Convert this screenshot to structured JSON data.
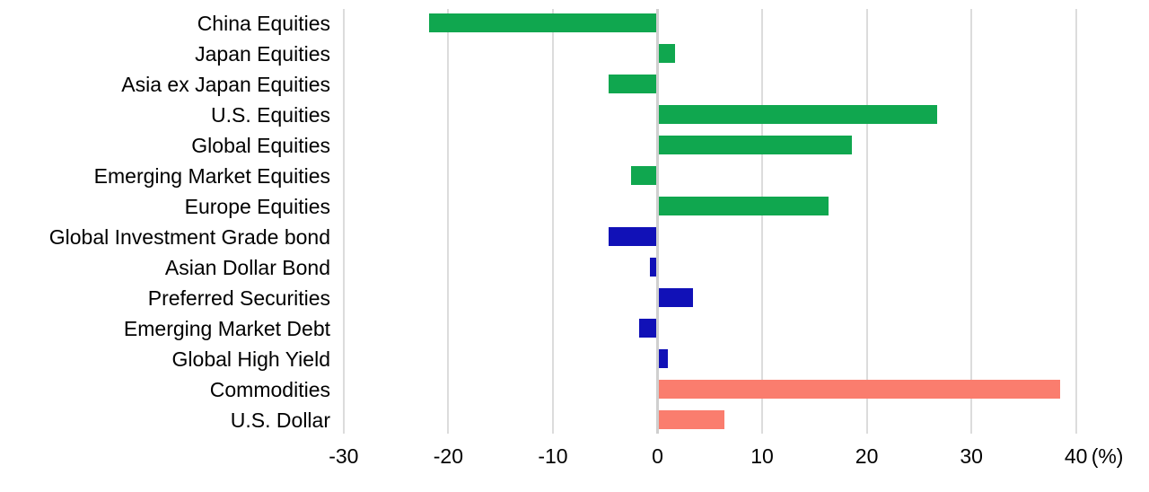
{
  "chart_data": {
    "type": "bar",
    "orientation": "horizontal",
    "categories": [
      "China Equities",
      "Japan Equities",
      "Asia ex Japan Equities",
      "U.S. Equities",
      "Global Equities",
      "Emerging Market Equities",
      "Europe Equities",
      "Global Investment Grade bond",
      "Asian Dollar Bond",
      "Preferred Securities",
      "Emerging Market Debt",
      "Global High Yield",
      "Commodities",
      "U.S. Dollar"
    ],
    "values": [
      -21.8,
      1.7,
      -4.7,
      26.7,
      18.6,
      -2.5,
      16.3,
      -4.7,
      -0.7,
      3.4,
      -1.8,
      1.0,
      38.5,
      6.4
    ],
    "bar_groups": [
      "equities",
      "equities",
      "equities",
      "equities",
      "equities",
      "equities",
      "equities",
      "fixed_income",
      "fixed_income",
      "fixed_income",
      "fixed_income",
      "fixed_income",
      "commodities_fx",
      "commodities_fx"
    ],
    "group_colors": {
      "equities": "#10a74f",
      "fixed_income": "#1111b7",
      "commodities_fx": "#fa7d6e"
    },
    "xticks": [
      -30,
      -20,
      -10,
      0,
      10,
      20,
      30,
      40
    ],
    "xtick_labels": [
      "-30",
      "-20",
      "-10",
      "0",
      "10",
      "20",
      "30",
      "40"
    ],
    "x_axis_unit": "(%)",
    "xlim": [
      -30.5,
      46
    ],
    "grid": true,
    "gridline_color": "#dcdcdc",
    "zero_line_color": "#cfcfcf",
    "text_color": "#000000",
    "background_color": "#ffffff",
    "legend": "none"
  }
}
